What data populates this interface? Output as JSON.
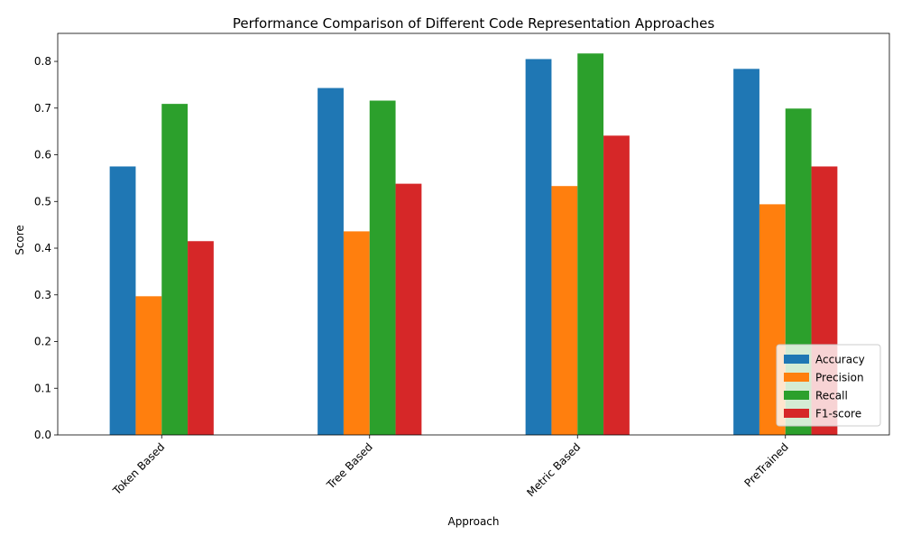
{
  "chart_data": {
    "type": "bar",
    "title": "Performance Comparison of Different Code Representation Approaches",
    "xlabel": "Approach",
    "ylabel": "Score",
    "categories": [
      "Token Based",
      "Tree Based",
      "Metric Based",
      "PreTrained"
    ],
    "series": [
      {
        "name": "Accuracy",
        "color": "#1f77b4",
        "values": [
          0.575,
          0.743,
          0.805,
          0.784
        ]
      },
      {
        "name": "Precision",
        "color": "#ff7f0e",
        "values": [
          0.297,
          0.436,
          0.533,
          0.494
        ]
      },
      {
        "name": "Recall",
        "color": "#2ca02c",
        "values": [
          0.709,
          0.716,
          0.817,
          0.699
        ]
      },
      {
        "name": "F1-score",
        "color": "#d62728",
        "values": [
          0.415,
          0.538,
          0.641,
          0.575
        ]
      }
    ],
    "ylim": [
      0,
      0.86
    ],
    "yticks": [
      "0.0",
      "0.1",
      "0.2",
      "0.3",
      "0.4",
      "0.5",
      "0.6",
      "0.7",
      "0.8"
    ],
    "grid": false,
    "legend_position": "bottom-right"
  }
}
